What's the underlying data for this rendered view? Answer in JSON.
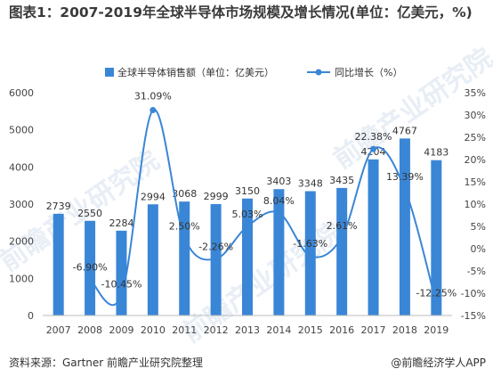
{
  "title": "图表1：2007-2019年全球半导体市场规模及增长情况(单位：亿美元，%)",
  "source": "资料来源：Gartner 前瞻产业研究院整理",
  "brand": "@前瞻经济学人APP",
  "watermark": "前瞻产业研究院",
  "chart_data": {
    "type": "bar",
    "categories": [
      "2007",
      "2008",
      "2009",
      "2010",
      "2011",
      "2012",
      "2013",
      "2014",
      "2015",
      "2016",
      "2017",
      "2018",
      "2019"
    ],
    "series": [
      {
        "name": "全球半导体销售额（单位：亿美元）",
        "type": "bar",
        "axis": "left",
        "color": "#3a86d6",
        "values": [
          2739,
          2550,
          2284,
          2994,
          3068,
          2999,
          3150,
          3403,
          3348,
          3435,
          4204,
          4767,
          4183
        ],
        "labels": [
          "2739",
          "2550",
          "2284",
          "2994",
          "3068",
          "2999",
          "3150",
          "3403",
          "3348",
          "3435",
          "4204",
          "4767",
          "4183"
        ]
      },
      {
        "name": "同比增长（%）",
        "type": "line",
        "smooth": true,
        "axis": "right",
        "color": "#3a86d6",
        "values": [
          null,
          -6.9,
          -10.45,
          31.09,
          2.5,
          -2.26,
          5.03,
          8.04,
          -1.63,
          2.61,
          22.38,
          13.39,
          -12.25
        ],
        "labels": [
          "",
          "-6.90%",
          "-10.45%",
          "31.09%",
          "2.50%",
          "-2.26%",
          "5.03%",
          "8.04%",
          "-1.63%",
          "2.61%",
          "22.38%",
          "13.39%",
          "-12.25%"
        ]
      }
    ],
    "y_left": {
      "min": 0,
      "max": 6000,
      "ticks": [
        "0",
        "1000",
        "2000",
        "3000",
        "4000",
        "5000",
        "6000"
      ]
    },
    "y_right": {
      "min": -15,
      "max": 35,
      "ticks": [
        "-15%",
        "-10%",
        "-5%",
        "0%",
        "5%",
        "10%",
        "15%",
        "20%",
        "25%",
        "30%",
        "35%"
      ]
    },
    "legend_position": "top",
    "grid": false
  }
}
